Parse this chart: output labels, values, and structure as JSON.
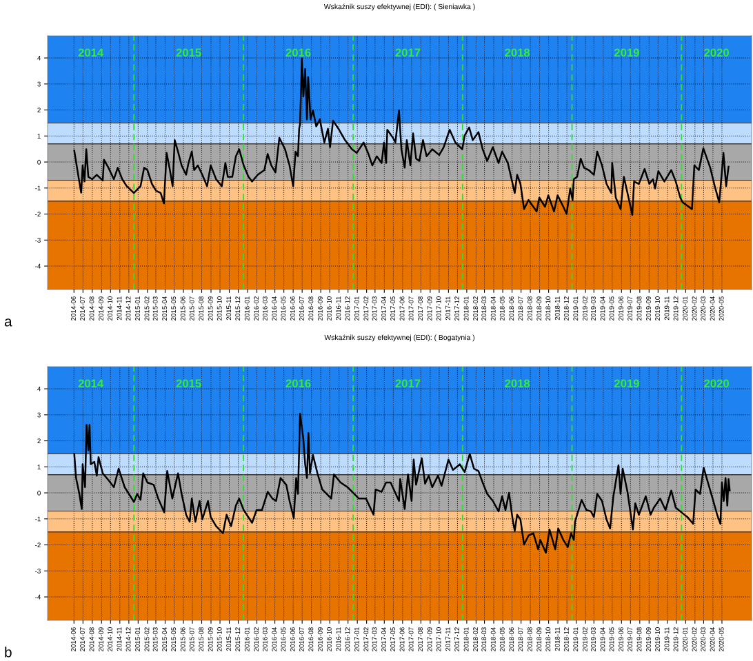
{
  "chart_data": [
    {
      "type": "line",
      "title": "Wskaźnik suszy efektywnej (EDI): ( Sieniawka )",
      "series": [
        {
          "color": "#000000",
          "x": [
            "2014-06-16",
            "2014-06-29",
            "2014-07-09",
            "2014-07-14",
            "2014-07-20",
            "2014-07-26",
            "2014-08-02",
            "2014-08-15",
            "2014-08-30",
            "2014-09-19",
            "2014-09-23",
            "2014-10-08",
            "2014-10-26",
            "2014-11-08",
            "2014-11-23",
            "2014-12-08",
            "2015-01-01",
            "2015-01-23",
            "2015-02-04",
            "2015-02-15",
            "2015-03-02",
            "2015-03-16",
            "2015-03-31",
            "2015-04-11",
            "2015-04-20",
            "2015-05-01",
            "2015-05-10",
            "2015-05-17",
            "2015-05-28",
            "2015-06-09",
            "2015-06-24",
            "2015-07-02",
            "2015-07-13",
            "2015-07-21",
            "2015-08-02",
            "2015-08-17",
            "2015-09-02",
            "2015-09-14",
            "2015-10-02",
            "2015-10-21",
            "2015-11-02",
            "2015-11-10",
            "2015-11-25",
            "2015-12-07",
            "2015-12-18",
            "2016-01-02",
            "2016-01-18",
            "2016-01-30",
            "2016-02-18",
            "2016-03-11",
            "2016-03-22",
            "2016-04-03",
            "2016-04-17",
            "2016-04-30",
            "2016-05-19",
            "2016-06-03",
            "2016-06-15",
            "2016-06-23",
            "2016-07-01",
            "2016-07-05",
            "2016-07-08",
            "2016-07-12",
            "2016-07-14",
            "2016-07-19",
            "2016-07-25",
            "2016-07-31",
            "2016-08-04",
            "2016-08-12",
            "2016-08-20",
            "2016-08-31",
            "2016-09-12",
            "2016-09-27",
            "2016-10-09",
            "2016-10-16",
            "2016-10-26",
            "2016-11-13",
            "2016-12-05",
            "2016-12-28",
            "2017-01-13",
            "2017-02-05",
            "2017-02-21",
            "2017-03-06",
            "2017-03-21",
            "2017-04-06",
            "2017-04-14",
            "2017-04-21",
            "2017-04-25",
            "2017-05-14",
            "2017-05-22",
            "2017-06-03",
            "2017-06-11",
            "2017-06-22",
            "2017-06-29",
            "2017-07-11",
            "2017-07-20",
            "2017-07-30",
            "2017-08-10",
            "2017-08-22",
            "2017-09-03",
            "2017-09-22",
            "2017-10-15",
            "2017-10-30",
            "2017-11-19",
            "2017-12-08",
            "2017-12-31",
            "2018-01-08",
            "2018-01-23",
            "2018-02-04",
            "2018-02-23",
            "2018-03-09",
            "2018-03-24",
            "2018-04-12",
            "2018-05-01",
            "2018-05-13",
            "2018-06-01",
            "2018-06-17",
            "2018-06-24",
            "2018-07-02",
            "2018-07-13",
            "2018-07-25",
            "2018-08-09",
            "2018-08-25",
            "2018-09-05",
            "2018-09-14",
            "2018-10-03",
            "2018-10-14",
            "2018-11-02",
            "2018-11-14",
            "2018-12-03",
            "2018-12-14",
            "2018-12-26",
            "2019-01-03",
            "2019-01-07",
            "2019-01-18",
            "2019-01-30",
            "2019-02-10",
            "2019-02-26",
            "2019-03-15",
            "2019-03-26",
            "2019-04-11",
            "2019-04-26",
            "2019-05-12",
            "2019-05-15",
            "2019-05-27",
            "2019-06-12",
            "2019-06-23",
            "2019-07-05",
            "2019-07-21",
            "2019-07-27",
            "2019-08-12",
            "2019-08-31",
            "2019-09-16",
            "2019-09-28",
            "2019-10-05",
            "2019-10-16",
            "2019-11-05",
            "2019-11-28",
            "2019-12-13",
            "2019-12-28",
            "2020-01-05",
            "2020-02-05",
            "2020-02-13",
            "2020-02-28",
            "2020-03-14",
            "2020-04-06",
            "2020-04-21",
            "2020-05-06",
            "2020-05-14",
            "2020-05-20",
            "2020-05-29",
            "2020-06-06"
          ],
          "values": [
            0.44,
            -0.49,
            -1.18,
            -0.13,
            -0.75,
            0.49,
            -0.57,
            -0.66,
            -0.49,
            -0.71,
            0.09,
            -0.22,
            -0.66,
            -0.22,
            -0.66,
            -0.93,
            -1.19,
            -0.93,
            -0.22,
            -0.31,
            -0.84,
            -1.11,
            -1.19,
            -1.59,
            0.35,
            -0.31,
            -0.93,
            0.84,
            0.4,
            -0.13,
            -0.49,
            -0.04,
            0.4,
            -0.31,
            -0.13,
            -0.49,
            -0.93,
            -0.13,
            -0.66,
            -0.93,
            -0.04,
            -0.57,
            -0.57,
            0.22,
            0.49,
            -0.13,
            -0.57,
            -0.75,
            -0.49,
            -0.31,
            0.31,
            -0.13,
            -0.4,
            0.93,
            0.49,
            -0.13,
            -0.93,
            0.4,
            0.22,
            1.28,
            1.46,
            3.05,
            3.98,
            2.52,
            3.58,
            1.64,
            3.27,
            1.64,
            1.99,
            1.37,
            1.64,
            0.75,
            1.28,
            0.57,
            1.59,
            1.28,
            0.84,
            0.49,
            0.35,
            0.75,
            0.31,
            -0.13,
            0.22,
            -0.04,
            0.75,
            -0.04,
            1.24,
            0.93,
            0.75,
            1.99,
            0.49,
            -0.22,
            0.84,
            -0.13,
            1.1,
            0.13,
            0.04,
            0.84,
            0.22,
            0.49,
            0.27,
            0.57,
            1.24,
            0.75,
            0.49,
            1.02,
            1.33,
            0.84,
            1.15,
            0.49,
            0.04,
            0.57,
            -0.04,
            0.4,
            -0.04,
            -0.84,
            -1.19,
            -0.49,
            -0.84,
            -1.81,
            -1.46,
            -1.72,
            -1.9,
            -1.37,
            -1.72,
            -1.28,
            -1.9,
            -1.28,
            -1.72,
            -1.99,
            -1.02,
            -1.46,
            -0.66,
            -0.57,
            0.13,
            -0.22,
            -0.31,
            -0.49,
            0.4,
            -0.13,
            -0.84,
            -1.19,
            -0.04,
            -1.37,
            -1.81,
            -0.57,
            -1.19,
            -2.03,
            -0.75,
            -0.84,
            -0.27,
            -0.84,
            -0.66,
            -1.02,
            -0.35,
            -0.75,
            -0.31,
            -0.75,
            -1.37,
            -1.55,
            -1.81,
            -0.13,
            -0.31,
            0.53,
            -0.22,
            -0.93,
            -1.55,
            -0.49,
            0.35,
            -0.93,
            -0.18
          ]
        }
      ],
      "xlim": [
        "2014-03-19",
        "2020-08-22"
      ],
      "ylim": [
        -4.9,
        4.85
      ],
      "xticks": [
        {
          "value": "2014-06-15",
          "label": "2014-06"
        },
        {
          "value": "2014-07-15",
          "label": "2014-07"
        },
        {
          "value": "2014-08-15",
          "label": "2014-08"
        },
        {
          "value": "2014-09-15",
          "label": "2014-09"
        },
        {
          "value": "2014-10-15",
          "label": "2014-10"
        },
        {
          "value": "2014-11-15",
          "label": "2014-11"
        },
        {
          "value": "2014-12-15",
          "label": "2014-12"
        },
        {
          "value": "2015-01-15",
          "label": "2015-01"
        },
        {
          "value": "2015-02-15",
          "label": "2015-02"
        },
        {
          "value": "2015-03-15",
          "label": "2015-03"
        },
        {
          "value": "2015-04-15",
          "label": "2015-04"
        },
        {
          "value": "2015-05-15",
          "label": "2015-05"
        },
        {
          "value": "2015-06-15",
          "label": "2015-06"
        },
        {
          "value": "2015-07-15",
          "label": "2015-07"
        },
        {
          "value": "2015-08-15",
          "label": "2015-08"
        },
        {
          "value": "2015-09-15",
          "label": "2015-09"
        },
        {
          "value": "2015-10-15",
          "label": "2015-10"
        },
        {
          "value": "2015-11-15",
          "label": "2015-11"
        },
        {
          "value": "2015-12-15",
          "label": "2015-12"
        },
        {
          "value": "2016-01-15",
          "label": "2016-01"
        },
        {
          "value": "2016-02-15",
          "label": "2016-02"
        },
        {
          "value": "2016-03-15",
          "label": "2016-03"
        },
        {
          "value": "2016-04-15",
          "label": "2016-04"
        },
        {
          "value": "2016-05-15",
          "label": "2016-05"
        },
        {
          "value": "2016-06-15",
          "label": "2016-06"
        },
        {
          "value": "2016-07-15",
          "label": "2016-07"
        },
        {
          "value": "2016-08-15",
          "label": "2016-08"
        },
        {
          "value": "2016-09-15",
          "label": "2016-09"
        },
        {
          "value": "2016-10-15",
          "label": "2016-10"
        },
        {
          "value": "2016-11-15",
          "label": "2016-11"
        },
        {
          "value": "2016-12-15",
          "label": "2016-12"
        },
        {
          "value": "2017-01-15",
          "label": "2017-01"
        },
        {
          "value": "2017-02-15",
          "label": "2017-02"
        },
        {
          "value": "2017-03-15",
          "label": "2017-03"
        },
        {
          "value": "2017-04-15",
          "label": "2017-04"
        },
        {
          "value": "2017-05-15",
          "label": "2017-05"
        },
        {
          "value": "2017-06-15",
          "label": "2017-06"
        },
        {
          "value": "2017-07-15",
          "label": "2017-07"
        },
        {
          "value": "2017-08-15",
          "label": "2017-08"
        },
        {
          "value": "2017-09-15",
          "label": "2017-09"
        },
        {
          "value": "2017-10-15",
          "label": "2017-10"
        },
        {
          "value": "2017-11-15",
          "label": "2017-11"
        },
        {
          "value": "2017-12-15",
          "label": "2017-12"
        },
        {
          "value": "2018-01-15",
          "label": "2018-01"
        },
        {
          "value": "2018-02-15",
          "label": "2018-02"
        },
        {
          "value": "2018-03-15",
          "label": "2018-03"
        },
        {
          "value": "2018-04-15",
          "label": "2018-04"
        },
        {
          "value": "2018-05-15",
          "label": "2018-05"
        },
        {
          "value": "2018-06-15",
          "label": "2018-06"
        },
        {
          "value": "2018-07-15",
          "label": "2018-07"
        },
        {
          "value": "2018-08-15",
          "label": "2018-08"
        },
        {
          "value": "2018-09-15",
          "label": "2018-09"
        },
        {
          "value": "2018-10-15",
          "label": "2018-10"
        },
        {
          "value": "2018-11-15",
          "label": "2018-11"
        },
        {
          "value": "2018-12-15",
          "label": "2018-12"
        },
        {
          "value": "2019-01-15",
          "label": "2019-01"
        },
        {
          "value": "2019-02-15",
          "label": "2019-02"
        },
        {
          "value": "2019-03-15",
          "label": "2019-03"
        },
        {
          "value": "2019-04-15",
          "label": "2019-04"
        },
        {
          "value": "2019-05-15",
          "label": "2019-05"
        },
        {
          "value": "2019-06-15",
          "label": "2019-06"
        },
        {
          "value": "2019-07-15",
          "label": "2019-07"
        },
        {
          "value": "2019-08-15",
          "label": "2019-08"
        },
        {
          "value": "2019-09-15",
          "label": "2019-09"
        },
        {
          "value": "2019-10-15",
          "label": "2019-10"
        },
        {
          "value": "2019-11-15",
          "label": "2019-11"
        },
        {
          "value": "2019-12-15",
          "label": "2019-12"
        },
        {
          "value": "2020-01-15",
          "label": "2020-01"
        },
        {
          "value": "2020-02-15",
          "label": "2020-02"
        },
        {
          "value": "2020-03-15",
          "label": "2020-03"
        },
        {
          "value": "2020-04-15",
          "label": "2020-04"
        },
        {
          "value": "2020-05-15",
          "label": "2020-05"
        }
      ],
      "yticks": [
        -4,
        -3,
        -2,
        -1,
        0,
        1,
        2,
        3,
        4
      ],
      "grid": true,
      "bands": [
        {
          "axis": "y",
          "from": -4.9,
          "to": -1.5,
          "color": "#e87400"
        },
        {
          "axis": "y",
          "from": -1.5,
          "to": -0.7,
          "color": "#ffc285"
        },
        {
          "axis": "y",
          "from": -0.7,
          "to": 0.7,
          "color": "#a8a8a8"
        },
        {
          "axis": "y",
          "from": 0.7,
          "to": 1.5,
          "color": "#bddcff"
        },
        {
          "axis": "y",
          "from": 1.5,
          "to": 4.85,
          "color": "#1e82f0"
        }
      ],
      "ref_lines": [
        {
          "axis": "x",
          "value": "2015-01-01",
          "color": "#33dd33",
          "line_style": "dashed"
        },
        {
          "axis": "x",
          "value": "2016-01-01",
          "color": "#33dd33",
          "line_style": "dashed"
        },
        {
          "axis": "x",
          "value": "2017-01-01",
          "color": "#33dd33",
          "line_style": "dashed"
        },
        {
          "axis": "x",
          "value": "2018-01-01",
          "color": "#33dd33",
          "line_style": "dashed"
        },
        {
          "axis": "x",
          "value": "2019-01-01",
          "color": "#33dd33",
          "line_style": "dashed"
        },
        {
          "axis": "x",
          "value": "2020-01-01",
          "color": "#33dd33",
          "line_style": "dashed"
        }
      ],
      "annotations": [
        "2014",
        "2015",
        "2016",
        "2017",
        "2018",
        "2019",
        "2020",
        "a"
      ]
    },
    {
      "type": "line",
      "title": "Wskaźnik suszy efektywnej (EDI): ( Bogatynia )",
      "series": [
        {
          "color": "#000000",
          "x": [
            "2014-06-16",
            "2014-06-22",
            "2014-07-03",
            "2014-07-11",
            "2014-07-14",
            "2014-07-22",
            "2014-07-27",
            "2014-08-02",
            "2014-08-06",
            "2014-08-10",
            "2014-08-22",
            "2014-08-30",
            "2014-09-05",
            "2014-09-19",
            "2014-10-08",
            "2014-10-26",
            "2014-11-11",
            "2014-12-01",
            "2015-01-01",
            "2015-01-12",
            "2015-01-23",
            "2015-02-01",
            "2015-02-15",
            "2015-03-08",
            "2015-03-23",
            "2015-04-12",
            "2015-04-22",
            "2015-05-09",
            "2015-05-28",
            "2015-06-09",
            "2015-06-24",
            "2015-07-06",
            "2015-07-13",
            "2015-07-25",
            "2015-08-08",
            "2015-08-17",
            "2015-09-05",
            "2015-09-14",
            "2015-10-02",
            "2015-10-25",
            "2015-11-06",
            "2015-11-21",
            "2015-12-07",
            "2015-12-18",
            "2016-01-02",
            "2016-01-30",
            "2016-02-14",
            "2016-03-03",
            "2016-03-22",
            "2016-04-07",
            "2016-04-19",
            "2016-05-04",
            "2016-05-23",
            "2016-06-03",
            "2016-06-17",
            "2016-06-25",
            "2016-07-01",
            "2016-07-05",
            "2016-07-08",
            "2016-07-14",
            "2016-07-19",
            "2016-07-25",
            "2016-07-31",
            "2016-08-05",
            "2016-08-10",
            "2016-08-20",
            "2016-09-04",
            "2016-09-20",
            "2016-10-05",
            "2016-10-20",
            "2016-10-29",
            "2016-11-20",
            "2016-12-13",
            "2017-01-05",
            "2017-01-20",
            "2017-02-13",
            "2017-03-10",
            "2017-03-17",
            "2017-04-06",
            "2017-04-21",
            "2017-05-06",
            "2017-06-03",
            "2017-06-07",
            "2017-06-22",
            "2017-07-03",
            "2017-07-15",
            "2017-07-22",
            "2017-07-30",
            "2017-08-18",
            "2017-08-29",
            "2017-09-10",
            "2017-09-22",
            "2017-10-11",
            "2017-10-23",
            "2017-11-15",
            "2017-11-30",
            "2017-12-23",
            "2018-01-08",
            "2018-01-25",
            "2018-02-08",
            "2018-02-23",
            "2018-03-09",
            "2018-03-24",
            "2018-04-12",
            "2018-05-01",
            "2018-05-13",
            "2018-05-24",
            "2018-06-05",
            "2018-06-17",
            "2018-06-24",
            "2018-07-02",
            "2018-07-13",
            "2018-07-25",
            "2018-08-09",
            "2018-08-25",
            "2018-09-10",
            "2018-09-17",
            "2018-10-06",
            "2018-10-18",
            "2018-11-06",
            "2018-11-16",
            "2018-12-03",
            "2018-12-18",
            "2018-12-29",
            "2019-01-07",
            "2019-01-11",
            "2019-02-02",
            "2019-02-18",
            "2019-03-05",
            "2019-03-15",
            "2019-03-26",
            "2019-04-11",
            "2019-04-26",
            "2019-05-08",
            "2019-05-19",
            "2019-06-05",
            "2019-06-12",
            "2019-06-19",
            "2019-07-05",
            "2019-07-16",
            "2019-07-23",
            "2019-07-31",
            "2019-08-12",
            "2019-09-04",
            "2019-09-20",
            "2019-10-01",
            "2019-10-22",
            "2019-11-09",
            "2019-11-28",
            "2019-12-13",
            "2020-01-01",
            "2020-01-21",
            "2020-02-09",
            "2020-02-17",
            "2020-03-03",
            "2020-03-15",
            "2020-03-25",
            "2020-04-14",
            "2020-04-29",
            "2020-05-10",
            "2020-05-15",
            "2020-05-21",
            "2020-05-27",
            "2020-06-02",
            "2020-06-06",
            "2020-06-10"
          ],
          "values": [
            1.5,
            0.57,
            -0.04,
            -0.62,
            1.1,
            0.22,
            2.61,
            1.64,
            2.61,
            1.1,
            1.19,
            0.66,
            1.37,
            0.75,
            0.49,
            0.22,
            0.93,
            0.22,
            -0.35,
            -0.04,
            -0.27,
            0.75,
            0.4,
            0.31,
            -0.22,
            -0.75,
            0.84,
            -0.22,
            0.75,
            -0.04,
            -0.84,
            -1.11,
            -0.22,
            -1.11,
            -0.31,
            -1.02,
            -0.31,
            -0.93,
            -1.28,
            -1.55,
            -0.84,
            -1.28,
            -0.49,
            -0.22,
            -0.66,
            -1.15,
            -0.66,
            -0.66,
            0.04,
            -0.22,
            -0.31,
            0.57,
            0.31,
            -0.31,
            -0.97,
            0.57,
            -0.04,
            1.64,
            3.05,
            2.52,
            2.08,
            1.1,
            0.57,
            2.3,
            0.75,
            1.46,
            0.75,
            0.13,
            -0.04,
            -0.22,
            0.71,
            0.4,
            0.22,
            -0.04,
            -0.22,
            -0.22,
            -0.84,
            0.13,
            0.04,
            0.4,
            0.4,
            -0.31,
            0.53,
            -0.62,
            0.71,
            -0.31,
            1.28,
            0.31,
            1.33,
            0.35,
            0.66,
            0.22,
            0.66,
            0.27,
            1.28,
            0.88,
            1.1,
            0.8,
            1.5,
            0.93,
            0.84,
            0.4,
            -0.04,
            -0.31,
            -0.71,
            -0.13,
            -0.66,
            0,
            -1.02,
            -1.46,
            -0.84,
            -1.02,
            -1.99,
            -1.64,
            -1.55,
            -2.17,
            -1.81,
            -2.3,
            -1.41,
            -2.17,
            -1.37,
            -1.81,
            -2.08,
            -1.55,
            -1.81,
            -1.11,
            -0.27,
            -0.66,
            -0.71,
            -0.93,
            -0.04,
            -0.31,
            -1.02,
            -1.37,
            -0.13,
            1.06,
            -0.04,
            0.93,
            0.04,
            -0.84,
            -1.41,
            -0.4,
            -0.84,
            -0.13,
            -0.84,
            -0.57,
            -0.22,
            -0.66,
            0.09,
            -0.57,
            -0.75,
            -0.93,
            -1.19,
            0.13,
            -0.04,
            0.97,
            0.57,
            -0.22,
            -0.84,
            -1.19,
            0.4,
            -0.31,
            0.57,
            -0.49,
            0.53,
            0.09
          ]
        }
      ],
      "xlim": [
        "2014-03-19",
        "2020-08-22"
      ],
      "ylim": [
        -4.9,
        4.85
      ],
      "xticks": [
        {
          "value": "2014-06-15",
          "label": "2014-06"
        },
        {
          "value": "2014-07-15",
          "label": "2014-07"
        },
        {
          "value": "2014-08-15",
          "label": "2014-08"
        },
        {
          "value": "2014-09-15",
          "label": "2014-09"
        },
        {
          "value": "2014-10-15",
          "label": "2014-10"
        },
        {
          "value": "2014-11-15",
          "label": "2014-11"
        },
        {
          "value": "2014-12-15",
          "label": "2014-12"
        },
        {
          "value": "2015-01-15",
          "label": "2015-01"
        },
        {
          "value": "2015-02-15",
          "label": "2015-02"
        },
        {
          "value": "2015-03-15",
          "label": "2015-03"
        },
        {
          "value": "2015-04-15",
          "label": "2015-04"
        },
        {
          "value": "2015-05-15",
          "label": "2015-05"
        },
        {
          "value": "2015-06-15",
          "label": "2015-06"
        },
        {
          "value": "2015-07-15",
          "label": "2015-07"
        },
        {
          "value": "2015-08-15",
          "label": "2015-08"
        },
        {
          "value": "2015-09-15",
          "label": "2015-09"
        },
        {
          "value": "2015-10-15",
          "label": "2015-10"
        },
        {
          "value": "2015-11-15",
          "label": "2015-11"
        },
        {
          "value": "2015-12-15",
          "label": "2015-12"
        },
        {
          "value": "2016-01-15",
          "label": "2016-01"
        },
        {
          "value": "2016-02-15",
          "label": "2016-02"
        },
        {
          "value": "2016-03-15",
          "label": "2016-03"
        },
        {
          "value": "2016-04-15",
          "label": "2016-04"
        },
        {
          "value": "2016-05-15",
          "label": "2016-05"
        },
        {
          "value": "2016-06-15",
          "label": "2016-06"
        },
        {
          "value": "2016-07-15",
          "label": "2016-07"
        },
        {
          "value": "2016-08-15",
          "label": "2016-08"
        },
        {
          "value": "2016-09-15",
          "label": "2016-09"
        },
        {
          "value": "2016-10-15",
          "label": "2016-10"
        },
        {
          "value": "2016-11-15",
          "label": "2016-11"
        },
        {
          "value": "2016-12-15",
          "label": "2016-12"
        },
        {
          "value": "2017-01-15",
          "label": "2017-01"
        },
        {
          "value": "2017-02-15",
          "label": "2017-02"
        },
        {
          "value": "2017-03-15",
          "label": "2017-03"
        },
        {
          "value": "2017-04-15",
          "label": "2017-04"
        },
        {
          "value": "2017-05-15",
          "label": "2017-05"
        },
        {
          "value": "2017-06-15",
          "label": "2017-06"
        },
        {
          "value": "2017-07-15",
          "label": "2017-07"
        },
        {
          "value": "2017-08-15",
          "label": "2017-08"
        },
        {
          "value": "2017-09-15",
          "label": "2017-09"
        },
        {
          "value": "2017-10-15",
          "label": "2017-10"
        },
        {
          "value": "2017-11-15",
          "label": "2017-11"
        },
        {
          "value": "2017-12-15",
          "label": "2017-12"
        },
        {
          "value": "2018-01-15",
          "label": "2018-01"
        },
        {
          "value": "2018-02-15",
          "label": "2018-02"
        },
        {
          "value": "2018-03-15",
          "label": "2018-03"
        },
        {
          "value": "2018-04-15",
          "label": "2018-04"
        },
        {
          "value": "2018-05-15",
          "label": "2018-05"
        },
        {
          "value": "2018-06-15",
          "label": "2018-06"
        },
        {
          "value": "2018-07-15",
          "label": "2018-07"
        },
        {
          "value": "2018-08-15",
          "label": "2018-08"
        },
        {
          "value": "2018-09-15",
          "label": "2018-09"
        },
        {
          "value": "2018-10-15",
          "label": "2018-10"
        },
        {
          "value": "2018-11-15",
          "label": "2018-11"
        },
        {
          "value": "2018-12-15",
          "label": "2018-12"
        },
        {
          "value": "2019-01-15",
          "label": "2019-01"
        },
        {
          "value": "2019-02-15",
          "label": "2019-02"
        },
        {
          "value": "2019-03-15",
          "label": "2019-03"
        },
        {
          "value": "2019-04-15",
          "label": "2019-04"
        },
        {
          "value": "2019-05-15",
          "label": "2019-05"
        },
        {
          "value": "2019-06-15",
          "label": "2019-06"
        },
        {
          "value": "2019-07-15",
          "label": "2019-07"
        },
        {
          "value": "2019-08-15",
          "label": "2019-08"
        },
        {
          "value": "2019-09-15",
          "label": "2019-09"
        },
        {
          "value": "2019-10-15",
          "label": "2019-10"
        },
        {
          "value": "2019-11-15",
          "label": "2019-11"
        },
        {
          "value": "2019-12-15",
          "label": "2019-12"
        },
        {
          "value": "2020-01-15",
          "label": "2020-01"
        },
        {
          "value": "2020-02-15",
          "label": "2020-02"
        },
        {
          "value": "2020-03-15",
          "label": "2020-03"
        },
        {
          "value": "2020-04-15",
          "label": "2020-04"
        },
        {
          "value": "2020-05-15",
          "label": "2020-05"
        }
      ],
      "yticks": [
        -4,
        -3,
        -2,
        -1,
        0,
        1,
        2,
        3,
        4
      ],
      "grid": true,
      "bands": [
        {
          "axis": "y",
          "from": -4.9,
          "to": -1.5,
          "color": "#e87400"
        },
        {
          "axis": "y",
          "from": -1.5,
          "to": -0.7,
          "color": "#ffc285"
        },
        {
          "axis": "y",
          "from": -0.7,
          "to": 0.7,
          "color": "#a8a8a8"
        },
        {
          "axis": "y",
          "from": 0.7,
          "to": 1.5,
          "color": "#bddcff"
        },
        {
          "axis": "y",
          "from": 1.5,
          "to": 4.85,
          "color": "#1e82f0"
        }
      ],
      "ref_lines": [
        {
          "axis": "x",
          "value": "2015-01-01",
          "color": "#33dd33",
          "line_style": "dashed"
        },
        {
          "axis": "x",
          "value": "2016-01-01",
          "color": "#33dd33",
          "line_style": "dashed"
        },
        {
          "axis": "x",
          "value": "2017-01-01",
          "color": "#33dd33",
          "line_style": "dashed"
        },
        {
          "axis": "x",
          "value": "2018-01-01",
          "color": "#33dd33",
          "line_style": "dashed"
        },
        {
          "axis": "x",
          "value": "2019-01-01",
          "color": "#33dd33",
          "line_style": "dashed"
        },
        {
          "axis": "x",
          "value": "2020-01-01",
          "color": "#33dd33",
          "line_style": "dashed"
        }
      ],
      "annotations": [
        "2014",
        "2015",
        "2016",
        "2017",
        "2018",
        "2019",
        "2020",
        "b"
      ]
    }
  ]
}
